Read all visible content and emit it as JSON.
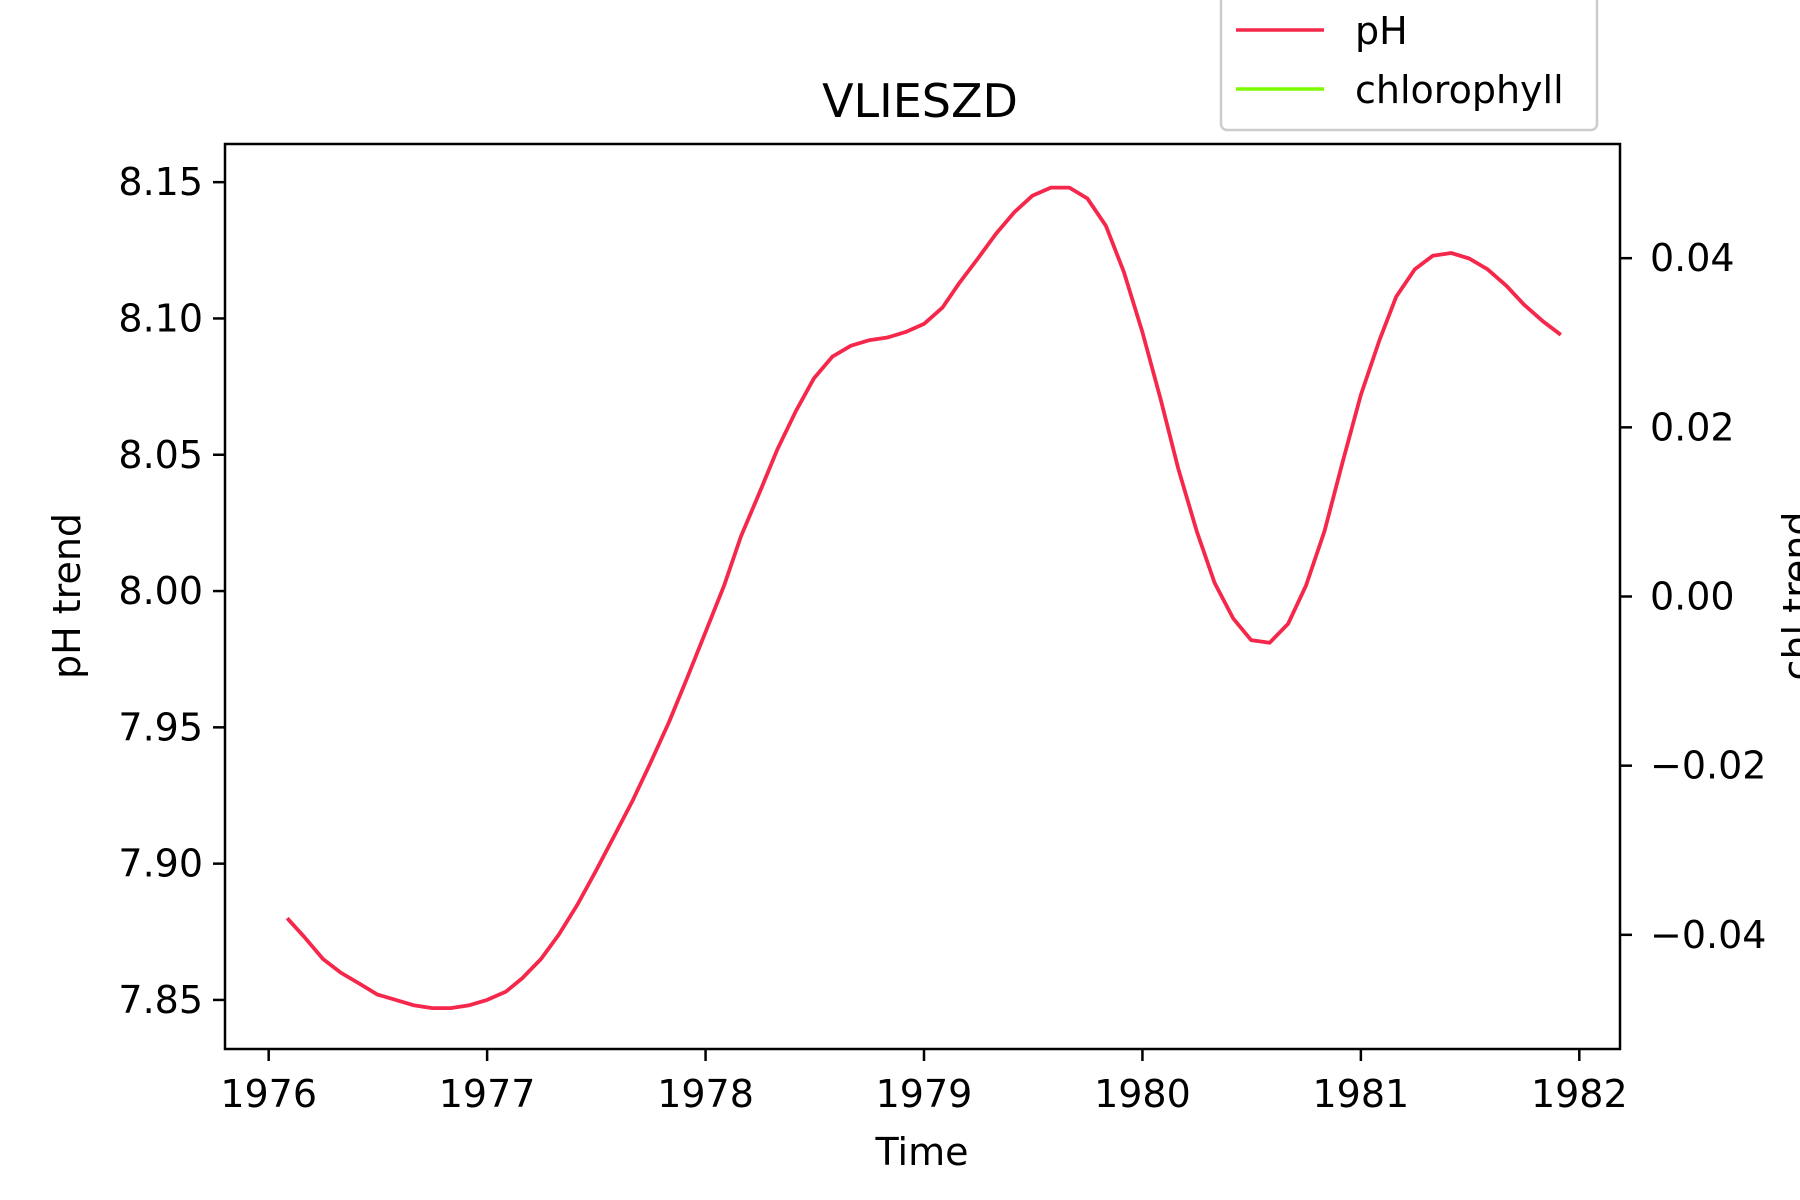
{
  "chart_data": {
    "type": "line",
    "title": "VLIESZD",
    "xlabel": "Time",
    "ylabel": "pH trend",
    "y2label": "chl trend",
    "xlim": [
      "1975-10-20",
      "1982-03-10"
    ],
    "ylim": [
      7.832,
      8.164
    ],
    "y2lim": [
      -0.0535,
      0.0535
    ],
    "x_ticks": [
      "1976",
      "1977",
      "1978",
      "1979",
      "1980",
      "1981",
      "1982"
    ],
    "y_ticks": [
      "7.85",
      "7.90",
      "7.95",
      "8.00",
      "8.05",
      "8.10",
      "8.15"
    ],
    "y2_ticks": [
      "−0.04",
      "−0.02",
      "0.00",
      "0.02",
      "0.04"
    ],
    "legend_position": "top-right",
    "grid": false,
    "series": [
      {
        "name": "pH",
        "color": "#f5274a",
        "axis": "left",
        "x": [
          "1976-02-01",
          "1976-03-01",
          "1976-04-01",
          "1976-05-01",
          "1976-06-01",
          "1976-07-01",
          "1976-08-01",
          "1976-09-01",
          "1976-10-01",
          "1976-11-01",
          "1976-12-01",
          "1977-01-01",
          "1977-02-01",
          "1977-03-01",
          "1977-04-01",
          "1977-05-01",
          "1977-06-01",
          "1977-07-01",
          "1977-08-01",
          "1977-09-01",
          "1977-10-01",
          "1977-11-01",
          "1977-12-01",
          "1978-01-01",
          "1978-02-01",
          "1978-03-01",
          "1978-04-01",
          "1978-05-01",
          "1978-06-01",
          "1978-07-01",
          "1978-08-01",
          "1978-09-01",
          "1978-10-01",
          "1978-11-01",
          "1978-12-01",
          "1979-01-01",
          "1979-02-01",
          "1979-03-01",
          "1979-04-01",
          "1979-05-01",
          "1979-06-01",
          "1979-07-01",
          "1979-08-01",
          "1979-09-01",
          "1979-10-01",
          "1979-11-01",
          "1979-12-01",
          "1980-01-01",
          "1980-02-01",
          "1980-03-01",
          "1980-04-01",
          "1980-05-01",
          "1980-06-01",
          "1980-07-01",
          "1980-08-01",
          "1980-09-01",
          "1980-10-01",
          "1980-11-01",
          "1980-12-01",
          "1981-01-01",
          "1981-02-01",
          "1981-03-01",
          "1981-04-01",
          "1981-05-01",
          "1981-06-01",
          "1981-07-01",
          "1981-08-01",
          "1981-09-01",
          "1981-10-01",
          "1981-11-01",
          "1981-12-01"
        ],
        "y": [
          7.88,
          7.873,
          7.865,
          7.86,
          7.856,
          7.852,
          7.85,
          7.848,
          7.847,
          7.847,
          7.848,
          7.85,
          7.853,
          7.858,
          7.865,
          7.874,
          7.885,
          7.897,
          7.91,
          7.923,
          7.937,
          7.952,
          7.968,
          7.985,
          8.002,
          8.02,
          8.036,
          8.052,
          8.066,
          8.078,
          8.086,
          8.09,
          8.092,
          8.093,
          8.095,
          8.098,
          8.104,
          8.113,
          8.122,
          8.131,
          8.139,
          8.145,
          8.148,
          8.148,
          8.144,
          8.134,
          8.117,
          8.095,
          8.07,
          8.045,
          8.022,
          8.003,
          7.99,
          7.982,
          7.981,
          7.988,
          8.002,
          8.022,
          8.047,
          8.072,
          8.092,
          8.108,
          8.118,
          8.123,
          8.124,
          8.122,
          8.118,
          8.112,
          8.105,
          8.099,
          8.094
        ]
      },
      {
        "name": "chlorophyll",
        "color": "#7cfc00",
        "axis": "right",
        "x": [],
        "y": []
      }
    ]
  }
}
